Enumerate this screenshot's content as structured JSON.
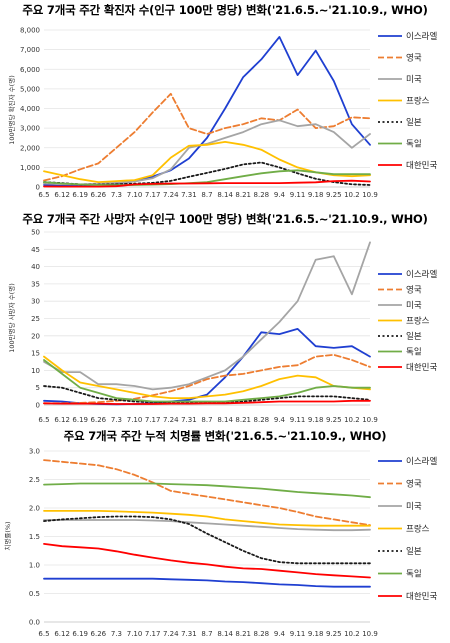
{
  "colors": {
    "israel": "#1f3fd1",
    "uk": "#ed7d31",
    "usa": "#a5a5a5",
    "france": "#ffc000",
    "japan": "#1a1a1a",
    "germany": "#70ad47",
    "korea": "#ff0000"
  },
  "chart_data": [
    {
      "type": "line",
      "title": "주요 7개국 주간 확진자 수(인구 100만 명당) 변화('21.6.5.~'21.10.9., WHO)",
      "xlabel": "",
      "ylabel": "100만명당 확진자 수(명)",
      "ylim": [
        0,
        8000
      ],
      "yticks": [
        "0",
        "1,000",
        "2,000",
        "3,000",
        "4,000",
        "5,000",
        "6,000",
        "7,000",
        "8,000"
      ],
      "x": [
        "6.5",
        "6.12",
        "6.19",
        "6.26",
        "7.3",
        "7.10",
        "7.17",
        "7.24",
        "7.31",
        "8.7",
        "8.14",
        "8.21",
        "8.28",
        "9.4",
        "9.11",
        "9.18",
        "9.25",
        "10.2",
        "10.9"
      ],
      "series": [
        {
          "name": "이스라엘",
          "key": "israel",
          "dash": "solid",
          "values": [
            100,
            60,
            80,
            110,
            180,
            290,
            530,
            850,
            1450,
            2500,
            4000,
            5600,
            6500,
            7650,
            5700,
            6950,
            5400,
            3200,
            2150
          ]
        },
        {
          "name": "영국",
          "key": "uk",
          "dash": "dashed",
          "values": [
            330,
            550,
            900,
            1200,
            2000,
            2800,
            3800,
            4750,
            3000,
            2700,
            3000,
            3200,
            3500,
            3400,
            3950,
            3000,
            3100,
            3550,
            3500
          ]
        },
        {
          "name": "미국",
          "key": "usa",
          "dash": "solid",
          "values": [
            180,
            150,
            130,
            160,
            210,
            280,
            450,
            900,
            2000,
            2200,
            2500,
            2800,
            3200,
            3400,
            3100,
            3200,
            2800,
            2000,
            2700
          ]
        },
        {
          "name": "프랑스",
          "key": "france",
          "dash": "solid",
          "values": [
            800,
            600,
            400,
            250,
            300,
            350,
            600,
            1500,
            2100,
            2150,
            2300,
            2150,
            1900,
            1400,
            1000,
            750,
            600,
            550,
            600
          ]
        },
        {
          "name": "일본",
          "key": "japan",
          "dash": "dotted",
          "values": [
            250,
            200,
            130,
            120,
            140,
            170,
            210,
            310,
            520,
            720,
            920,
            1150,
            1250,
            1000,
            700,
            420,
            250,
            140,
            100
          ]
        },
        {
          "name": "독일",
          "key": "germany",
          "dash": "solid",
          "values": [
            250,
            180,
            130,
            100,
            90,
            100,
            120,
            150,
            200,
            250,
            400,
            550,
            700,
            800,
            850,
            750,
            650,
            650,
            650
          ]
        },
        {
          "name": "대한민국",
          "key": "korea",
          "dash": "solid",
          "values": [
            25,
            20,
            20,
            20,
            40,
            130,
            160,
            180,
            180,
            190,
            200,
            200,
            200,
            200,
            220,
            240,
            300,
            320,
            280
          ]
        }
      ]
    },
    {
      "type": "line",
      "title": "주요 7개국 주간 사망자 수(인구 100만 명당) 변화('21.6.5.~'21.10.9., WHO)",
      "xlabel": "",
      "ylabel": "100만명당 사망자 수(명)",
      "ylim": [
        0,
        50
      ],
      "yticks": [
        "0",
        "5",
        "10",
        "15",
        "20",
        "25",
        "30",
        "35",
        "40",
        "45",
        "50"
      ],
      "x": [
        "6.5",
        "6.12",
        "6.19",
        "6.26",
        "7.3",
        "7.10",
        "7.17",
        "7.24",
        "7.31",
        "8.7",
        "8.14",
        "8.21",
        "8.28",
        "9.4",
        "9.11",
        "9.18",
        "9.25",
        "10.2",
        "10.9"
      ],
      "series": [
        {
          "name": "이스라엘",
          "key": "israel",
          "dash": "solid",
          "values": [
            1.2,
            1.0,
            0.5,
            0.3,
            0.2,
            0.3,
            0.5,
            1.0,
            1.5,
            3.0,
            8.0,
            14.0,
            21.0,
            20.5,
            22.0,
            17.0,
            16.5,
            17.0,
            14.0
          ]
        },
        {
          "name": "영국",
          "key": "uk",
          "dash": "dashed",
          "values": [
            0.5,
            0.5,
            0.6,
            0.8,
            1.2,
            1.8,
            2.8,
            4.0,
            5.5,
            7.5,
            8.5,
            9.0,
            10.0,
            11.0,
            11.5,
            14.0,
            14.5,
            13.0,
            11.0
          ]
        },
        {
          "name": "미국",
          "key": "usa",
          "dash": "solid",
          "values": [
            12.5,
            9.5,
            9.5,
            6.0,
            6.0,
            5.5,
            4.5,
            5.0,
            6.0,
            8.0,
            10.0,
            14.0,
            19.0,
            24.0,
            30.0,
            42.0,
            43.0,
            32.0,
            47.0
          ]
        },
        {
          "name": "프랑스",
          "key": "france",
          "dash": "solid",
          "values": [
            14.0,
            10.0,
            6.5,
            5.5,
            4.5,
            3.5,
            2.5,
            2.0,
            2.0,
            2.5,
            3.0,
            4.0,
            5.5,
            7.5,
            8.5,
            8.0,
            5.5,
            5.0,
            4.5
          ]
        },
        {
          "name": "일본",
          "key": "japan",
          "dash": "dotted",
          "values": [
            5.5,
            5.0,
            3.5,
            2.0,
            1.5,
            1.0,
            0.8,
            0.6,
            0.6,
            0.7,
            0.8,
            1.0,
            1.5,
            2.0,
            2.5,
            2.5,
            2.5,
            2.0,
            1.5
          ]
        },
        {
          "name": "독일",
          "key": "germany",
          "dash": "solid",
          "values": [
            13.0,
            9.0,
            5.0,
            3.5,
            2.0,
            1.5,
            1.0,
            1.0,
            1.0,
            1.0,
            1.0,
            1.5,
            2.0,
            2.5,
            3.5,
            5.0,
            5.5,
            5.0,
            5.0
          ]
        },
        {
          "name": "대한민국",
          "key": "korea",
          "dash": "solid",
          "values": [
            0.5,
            0.4,
            0.4,
            0.4,
            0.3,
            0.3,
            0.3,
            0.4,
            0.4,
            0.5,
            0.5,
            0.6,
            0.8,
            1.0,
            1.0,
            1.0,
            1.0,
            1.2,
            1.2
          ]
        }
      ]
    },
    {
      "type": "line",
      "title": "주요 7개국 주간 누적 치명률 변화('21.6.5.~'21.10.9., WHO)",
      "xlabel": "",
      "ylabel": "치명률(%)",
      "ylim": [
        0,
        3.0
      ],
      "yticks": [
        "0.0",
        "0.5",
        "1.0",
        "1.5",
        "2.0",
        "2.5",
        "3.0"
      ],
      "x": [
        "6.5",
        "6.12",
        "6.19",
        "6.26",
        "7.3",
        "7.10",
        "7.17",
        "7.24",
        "7.31",
        "8.7",
        "8.14",
        "8.21",
        "8.28",
        "9.4",
        "9.11",
        "9.18",
        "9.25",
        "10.2",
        "10.9"
      ],
      "series": [
        {
          "name": "이스라엘",
          "key": "israel",
          "dash": "solid",
          "values": [
            0.76,
            0.76,
            0.76,
            0.76,
            0.76,
            0.76,
            0.76,
            0.75,
            0.74,
            0.73,
            0.71,
            0.7,
            0.68,
            0.66,
            0.65,
            0.63,
            0.62,
            0.62,
            0.62
          ]
        },
        {
          "name": "영국",
          "key": "uk",
          "dash": "dashed",
          "values": [
            2.84,
            2.81,
            2.78,
            2.75,
            2.68,
            2.58,
            2.45,
            2.3,
            2.25,
            2.2,
            2.15,
            2.1,
            2.05,
            2.0,
            1.93,
            1.85,
            1.8,
            1.75,
            1.7
          ]
        },
        {
          "name": "미국",
          "key": "usa",
          "dash": "solid",
          "values": [
            1.79,
            1.79,
            1.79,
            1.79,
            1.79,
            1.79,
            1.78,
            1.77,
            1.75,
            1.73,
            1.71,
            1.69,
            1.67,
            1.65,
            1.63,
            1.62,
            1.61,
            1.61,
            1.62
          ]
        },
        {
          "name": "프랑스",
          "key": "france",
          "dash": "solid",
          "values": [
            1.95,
            1.95,
            1.95,
            1.95,
            1.94,
            1.93,
            1.92,
            1.9,
            1.88,
            1.85,
            1.8,
            1.77,
            1.74,
            1.71,
            1.7,
            1.69,
            1.69,
            1.69,
            1.69
          ]
        },
        {
          "name": "일본",
          "key": "japan",
          "dash": "dotted",
          "values": [
            1.77,
            1.8,
            1.82,
            1.84,
            1.85,
            1.85,
            1.84,
            1.8,
            1.72,
            1.55,
            1.4,
            1.25,
            1.12,
            1.05,
            1.03,
            1.03,
            1.03,
            1.03,
            1.03
          ]
        },
        {
          "name": "독일",
          "key": "germany",
          "dash": "solid",
          "values": [
            2.41,
            2.42,
            2.43,
            2.43,
            2.43,
            2.43,
            2.43,
            2.42,
            2.41,
            2.4,
            2.38,
            2.36,
            2.34,
            2.31,
            2.28,
            2.26,
            2.24,
            2.22,
            2.19
          ]
        },
        {
          "name": "대한민국",
          "key": "korea",
          "dash": "solid",
          "values": [
            1.37,
            1.33,
            1.31,
            1.29,
            1.24,
            1.18,
            1.13,
            1.08,
            1.04,
            1.01,
            0.97,
            0.94,
            0.93,
            0.9,
            0.87,
            0.84,
            0.82,
            0.8,
            0.78
          ]
        }
      ]
    }
  ]
}
